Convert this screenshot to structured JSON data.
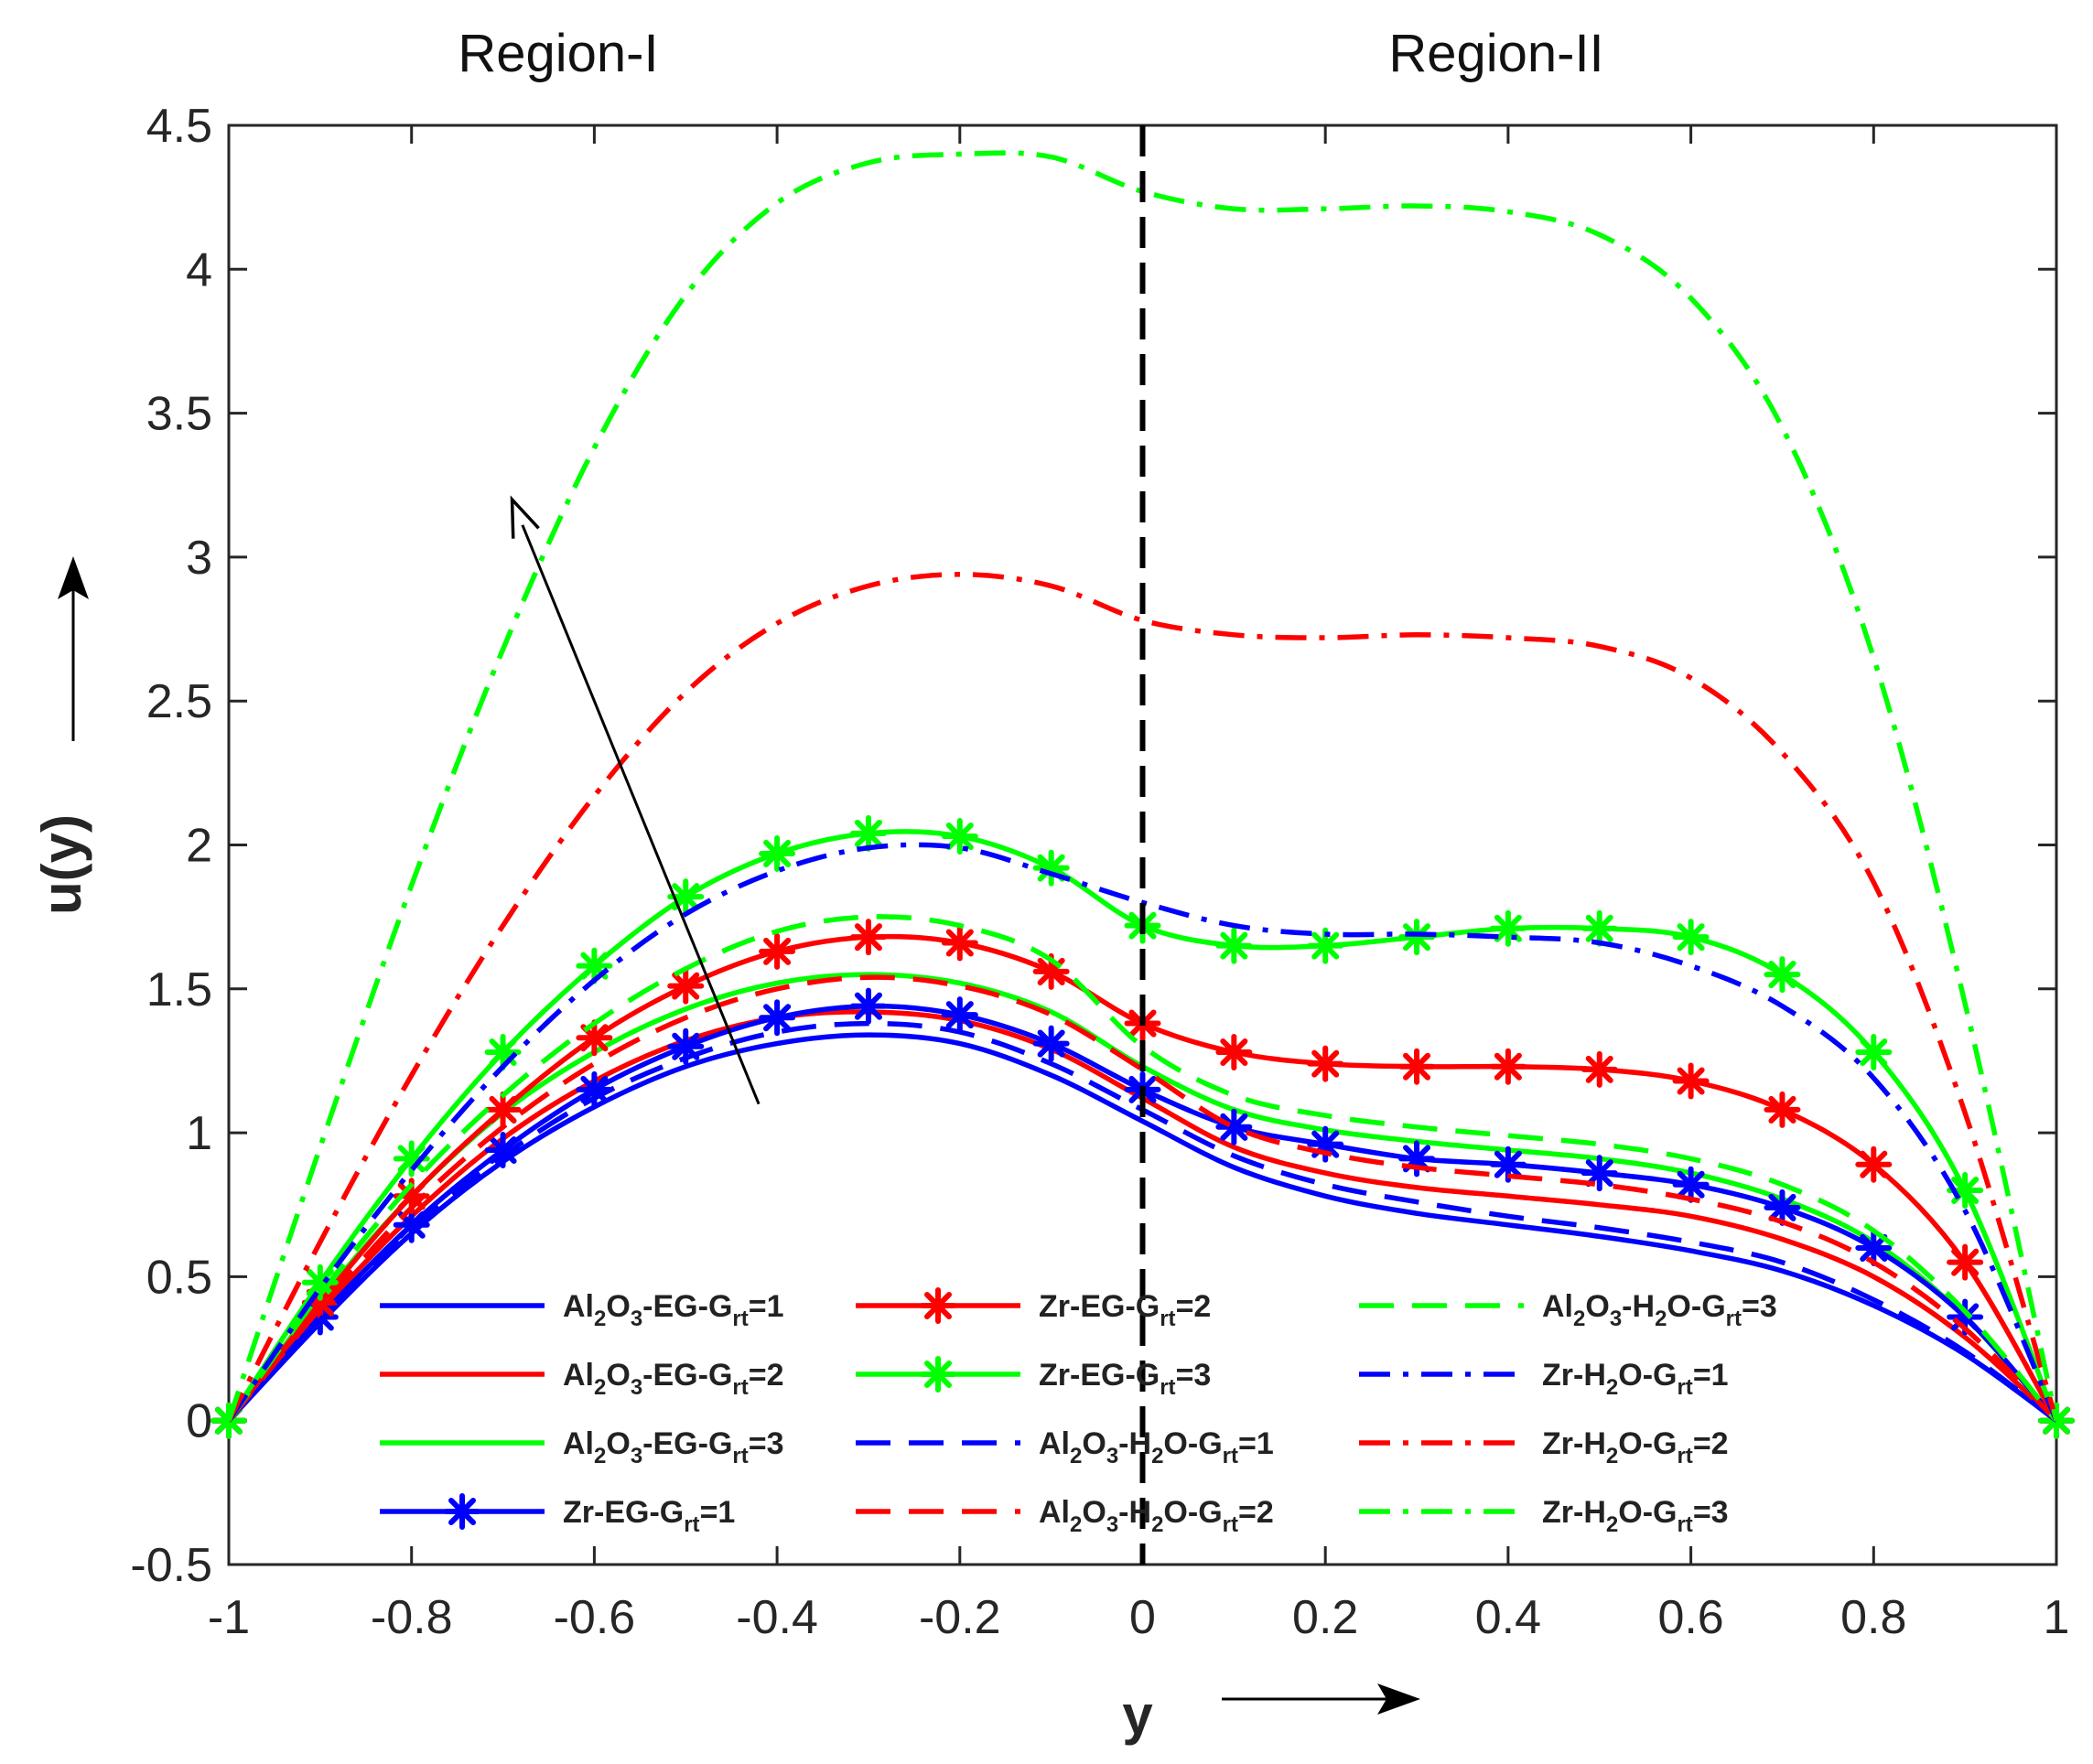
{
  "chart_data": {
    "type": "line",
    "title": "",
    "xlabel": "y",
    "ylabel": "u(y)",
    "xlim": [
      -1,
      1
    ],
    "ylim": [
      -0.5,
      4.5
    ],
    "xticks": [
      -1,
      -0.8,
      -0.6,
      -0.4,
      -0.2,
      0,
      0.2,
      0.4,
      0.6,
      0.8,
      1
    ],
    "yticks": [
      -0.5,
      0,
      0.5,
      1,
      1.5,
      2,
      2.5,
      3,
      3.5,
      4,
      4.5
    ],
    "xtick_labels": [
      "-1",
      "-0.8",
      "-0.6",
      "-0.4",
      "-0.2",
      "0",
      "0.2",
      "0.4",
      "0.6",
      "0.8",
      "1"
    ],
    "ytick_labels": [
      "-0.5",
      "0",
      "0.5",
      "1",
      "1.5",
      "2",
      "2.5",
      "3",
      "3.5",
      "4",
      "4.5"
    ],
    "annotations": {
      "region_left": "Region-I",
      "region_right": "Region-II",
      "interface_x": 0,
      "trend_arrow": {
        "from": [
          -0.42,
          1.1
        ],
        "to": [
          -0.69,
          3.2
        ]
      }
    },
    "x": [
      -1,
      -0.9,
      -0.8,
      -0.7,
      -0.6,
      -0.5,
      -0.4,
      -0.3,
      -0.2,
      -0.1,
      0,
      0.1,
      0.2,
      0.3,
      0.4,
      0.5,
      0.6,
      0.7,
      0.8,
      0.9,
      1
    ],
    "series": [
      {
        "name": "Al2O3-EG-Grt=1",
        "color": "#0000ff",
        "style": "solid",
        "marker": "none",
        "legend": {
          "pre": "Al",
          "parts": [
            [
              "2",
              "O"
            ],
            [
              "3",
              "-EG-G"
            ],
            [
              "rt",
              "=1"
            ]
          ]
        },
        "values": [
          0,
          0.34,
          0.65,
          0.9,
          1.09,
          1.23,
          1.31,
          1.34,
          1.31,
          1.2,
          1.04,
          0.88,
          0.78,
          0.72,
          0.68,
          0.64,
          0.59,
          0.52,
          0.4,
          0.23,
          0
        ]
      },
      {
        "name": "Al2O3-EG-Grt=2",
        "color": "#ff0000",
        "style": "solid",
        "marker": "none",
        "legend": {
          "pre": "Al",
          "parts": [
            [
              "2",
              "O"
            ],
            [
              "3",
              "-EG-G"
            ],
            [
              "rt",
              "=2"
            ]
          ]
        },
        "values": [
          0,
          0.38,
          0.71,
          0.98,
          1.18,
          1.32,
          1.4,
          1.42,
          1.39,
          1.29,
          1.12,
          0.95,
          0.86,
          0.81,
          0.78,
          0.75,
          0.71,
          0.63,
          0.5,
          0.29,
          0
        ]
      },
      {
        "name": "Al2O3-EG-Grt=3",
        "color": "#00ff00",
        "style": "solid",
        "marker": "none",
        "legend": {
          "pre": "Al",
          "parts": [
            [
              "2",
              "O"
            ],
            [
              "3",
              "-EG-G"
            ],
            [
              "rt",
              "=3"
            ]
          ]
        },
        "values": [
          0,
          0.42,
          0.78,
          1.07,
          1.28,
          1.43,
          1.52,
          1.55,
          1.52,
          1.42,
          1.23,
          1.08,
          1.01,
          0.97,
          0.94,
          0.91,
          0.86,
          0.77,
          0.62,
          0.36,
          0
        ]
      },
      {
        "name": "Zr-EG-Grt=1",
        "color": "#0000ff",
        "style": "solid",
        "marker": "star",
        "legend": {
          "pre": "Zr-EG-G",
          "parts": [
            [
              "rt",
              "=1"
            ]
          ]
        },
        "values": [
          0,
          0.36,
          0.68,
          0.94,
          1.15,
          1.3,
          1.4,
          1.44,
          1.41,
          1.31,
          1.15,
          1.02,
          0.96,
          0.91,
          0.89,
          0.86,
          0.82,
          0.74,
          0.6,
          0.36,
          0
        ]
      },
      {
        "name": "Zr-EG-Grt=2",
        "color": "#ff0000",
        "style": "solid",
        "marker": "star",
        "legend": {
          "pre": "Zr-EG-G",
          "parts": [
            [
              "rt",
              "=2"
            ]
          ]
        },
        "values": [
          0,
          0.41,
          0.78,
          1.08,
          1.33,
          1.51,
          1.63,
          1.68,
          1.66,
          1.56,
          1.38,
          1.28,
          1.24,
          1.23,
          1.23,
          1.22,
          1.18,
          1.08,
          0.89,
          0.55,
          0
        ]
      },
      {
        "name": "Zr-EG-Grt=3",
        "color": "#00ff00",
        "style": "solid",
        "marker": "star",
        "legend": {
          "pre": "Zr-EG-G",
          "parts": [
            [
              "rt",
              "=3"
            ]
          ]
        },
        "values": [
          0,
          0.48,
          0.91,
          1.28,
          1.58,
          1.82,
          1.97,
          2.04,
          2.03,
          1.92,
          1.72,
          1.65,
          1.65,
          1.68,
          1.71,
          1.71,
          1.68,
          1.55,
          1.28,
          0.8,
          0
        ]
      },
      {
        "name": "Al2O3-H2O-Grt=1",
        "color": "#0000ff",
        "style": "dash",
        "marker": "none",
        "legend": {
          "pre": "Al",
          "parts": [
            [
              "2",
              "O"
            ],
            [
              "3",
              "-H"
            ],
            [
              "2",
              "O-G"
            ],
            [
              "rt",
              "=1"
            ]
          ]
        },
        "values": [
          0,
          0.35,
          0.67,
          0.92,
          1.12,
          1.26,
          1.35,
          1.38,
          1.35,
          1.24,
          1.08,
          0.92,
          0.82,
          0.76,
          0.71,
          0.67,
          0.62,
          0.55,
          0.42,
          0.24,
          0
        ]
      },
      {
        "name": "Al2O3-H2O-Grt=2",
        "color": "#ff0000",
        "style": "dash",
        "marker": "none",
        "legend": {
          "pre": "Al",
          "parts": [
            [
              "2",
              "O"
            ],
            [
              "3",
              "-H"
            ],
            [
              "2",
              "O-G"
            ],
            [
              "rt",
              "=2"
            ]
          ]
        },
        "values": [
          0,
          0.39,
          0.74,
          1.02,
          1.24,
          1.4,
          1.5,
          1.54,
          1.51,
          1.41,
          1.22,
          1.02,
          0.93,
          0.88,
          0.85,
          0.82,
          0.77,
          0.69,
          0.55,
          0.32,
          0
        ]
      },
      {
        "name": "Al2O3-H2O-Grt=3",
        "color": "#00ff00",
        "style": "dash",
        "marker": "none",
        "legend": {
          "pre": "Al",
          "parts": [
            [
              "2",
              "O"
            ],
            [
              "3",
              "-H"
            ],
            [
              "2",
              "O-G"
            ],
            [
              "rt",
              "=3"
            ]
          ]
        },
        "values": [
          0,
          0.44,
          0.82,
          1.13,
          1.38,
          1.57,
          1.7,
          1.75,
          1.72,
          1.6,
          1.3,
          1.13,
          1.06,
          1.02,
          0.99,
          0.96,
          0.91,
          0.82,
          0.66,
          0.38,
          0
        ]
      },
      {
        "name": "Zr-H2O-Grt=1",
        "color": "#0000ff",
        "style": "dashdot",
        "marker": "none",
        "legend": {
          "pre": "Zr-H",
          "parts": [
            [
              "2",
              "O-G"
            ],
            [
              "rt",
              "=1"
            ]
          ]
        },
        "values": [
          0,
          0.46,
          0.87,
          1.23,
          1.53,
          1.76,
          1.91,
          1.99,
          1.99,
          1.9,
          1.8,
          1.72,
          1.69,
          1.69,
          1.68,
          1.66,
          1.58,
          1.44,
          1.19,
          0.73,
          0
        ]
      },
      {
        "name": "Zr-H2O-Grt=2",
        "color": "#ff0000",
        "style": "dashdot",
        "marker": "none",
        "legend": {
          "pre": "Zr-H",
          "parts": [
            [
              "2",
              "O-G"
            ],
            [
              "rt",
              "=2"
            ]
          ]
        },
        "values": [
          0,
          0.62,
          1.2,
          1.72,
          2.17,
          2.53,
          2.77,
          2.9,
          2.94,
          2.9,
          2.78,
          2.73,
          2.72,
          2.73,
          2.72,
          2.69,
          2.58,
          2.32,
          1.87,
          1.07,
          0
        ]
      },
      {
        "name": "Zr-H2O-Grt=3",
        "color": "#00ff00",
        "style": "dashdot",
        "marker": "none",
        "legend": {
          "pre": "Zr-H",
          "parts": [
            [
              "2",
              "O-G"
            ],
            [
              "rt",
              "=3"
            ]
          ]
        },
        "values": [
          0,
          0.95,
          1.86,
          2.68,
          3.38,
          3.91,
          4.23,
          4.37,
          4.4,
          4.39,
          4.27,
          4.21,
          4.21,
          4.22,
          4.2,
          4.12,
          3.9,
          3.45,
          2.65,
          1.45,
          0
        ]
      }
    ]
  }
}
